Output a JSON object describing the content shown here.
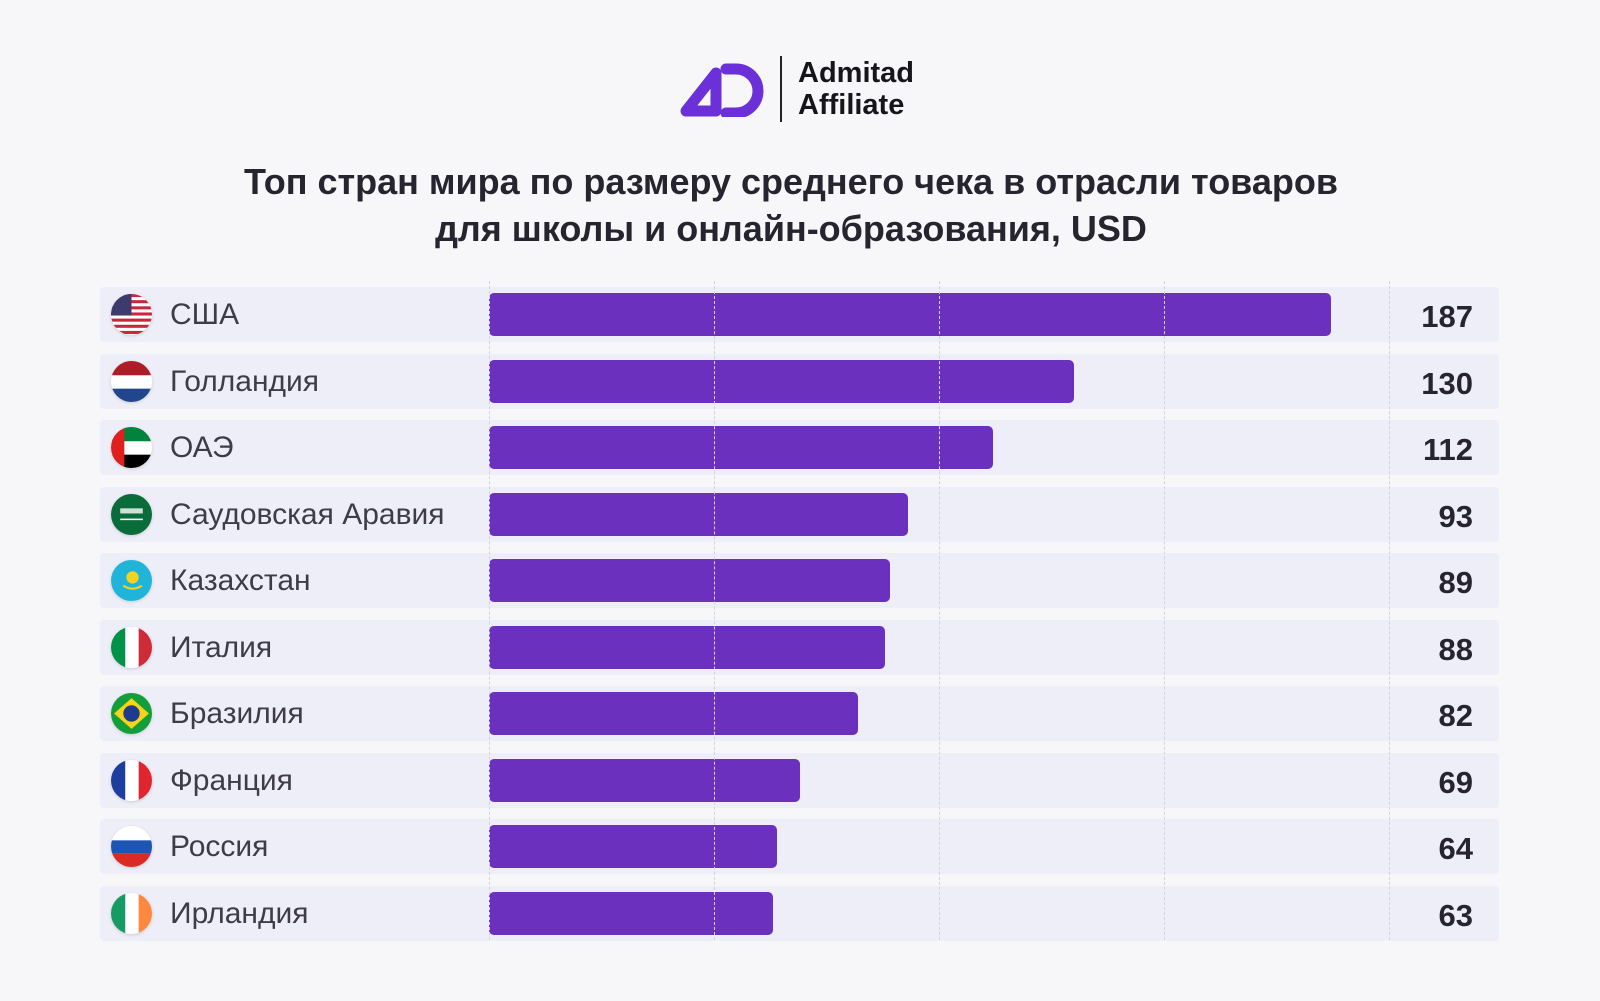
{
  "logo": {
    "line1": "Admitad",
    "line2": "Affiliate",
    "color": "#6b30d8"
  },
  "chart_data": {
    "type": "bar",
    "orientation": "horizontal",
    "title": "Топ стран мира по размеру среднего чека в отрасли товаров для школы и онлайн-образования, USD",
    "title_line1": "Топ стран мира по размеру среднего чека в отрасли товаров",
    "title_line2": "для школы и онлайн-образования, USD",
    "categories": [
      "США",
      "Голландия",
      "ОАЭ",
      "Саудовская Аравия",
      "Казахстан",
      "Италия",
      "Бразилия",
      "Франция",
      "Россия",
      "Ирландия"
    ],
    "flags": [
      "us",
      "nl",
      "ae",
      "sa",
      "kz",
      "it",
      "br",
      "fr",
      "ru",
      "ie"
    ],
    "values": [
      187,
      130,
      112,
      93,
      89,
      88,
      82,
      69,
      64,
      63
    ],
    "xlim": [
      0,
      200
    ],
    "grid_step": 50,
    "grid": true,
    "bar_color": "#6b30be"
  }
}
